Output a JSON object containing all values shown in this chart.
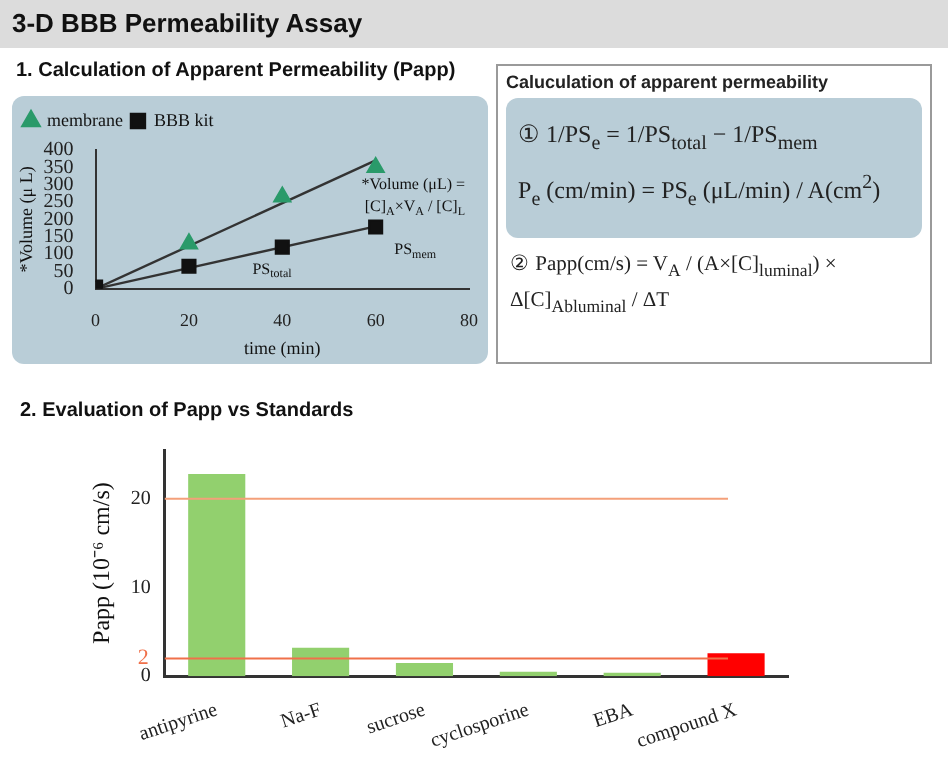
{
  "chart_data": [
    {
      "type": "scatter",
      "title": "3-D BBB Permeability Assay",
      "subtitle": "1. Calculation of Apparent Permeability (Papp)",
      "xlabel": "time (min)",
      "ylabel": "*Volume (μ L)",
      "xlim": [
        0,
        80
      ],
      "xticks": [
        0,
        20,
        40,
        60,
        80
      ],
      "ylim": [
        0,
        400
      ],
      "yticks": [
        0,
        50,
        100,
        150,
        200,
        250,
        300,
        350,
        400
      ],
      "grid": false,
      "legend": "top left",
      "series": [
        {
          "name": "membrane",
          "type": "scatter",
          "marker": "triangle",
          "color": "#2a9a6a",
          "x": [
            20,
            40,
            60
          ],
          "values": [
            130,
            265,
            350
          ]
        },
        {
          "name": "BBB kit",
          "type": "scatter",
          "marker": "square",
          "color": "#111111",
          "x": [
            0,
            20,
            40,
            60
          ],
          "values": [
            5,
            65,
            120,
            178
          ]
        },
        {
          "type": "line",
          "marker": "none",
          "color": "#333333",
          "x": [
            0,
            60
          ],
          "values": [
            0,
            370
          ]
        },
        {
          "type": "line",
          "marker": "none",
          "color": "#333333",
          "x": [
            0,
            60
          ],
          "values": [
            0,
            180
          ]
        }
      ],
      "annotations": [
        "*Volume (μL) = [C]$_{A}$×V$_{A}$ / [C]$_{L}$",
        "PS$_{total}$",
        "PS$_{mem}$"
      ]
    },
    {
      "type": "other",
      "title": "Caluculation of apparent permeability",
      "annotations": [
        "① 1/PS$_{e}$ = 1/PS$_{total}$ − 1/PS$_{mem}$",
        "P$_{e}$ (cm/min) = PS$_{e}$ (μL/min) / A(cm$^{2}$)",
        "② Papp(cm/s) = V$_{A}$ / (A×[C]$_{luminal}$) × Δ[C]$_{Abluminal}$ / ΔT"
      ]
    },
    {
      "type": "bar",
      "title": "2. Evaluation of Papp vs Standards",
      "ylabel": "Papp (10⁻⁶ cm/s)",
      "categories": [
        "antipyrine",
        "Na-F",
        "sucrose",
        "cyclosporine",
        "EBA",
        "compound X"
      ],
      "values": [
        22.8,
        3.2,
        1.5,
        0.5,
        0.4,
        2.6
      ],
      "colors": [
        "#92d06e",
        "#92d06e",
        "#92d06e",
        "#92d06e",
        "#92d06e",
        "#ff0000"
      ],
      "ylim": [
        0,
        25.5
      ],
      "yticks": [
        0,
        10,
        20
      ],
      "grid": false,
      "ref_lines": [
        {
          "axis": "y",
          "value": 20,
          "color": "#f4a07a"
        },
        {
          "axis": "y",
          "value": 2,
          "label": "2",
          "color": "#f0704a"
        }
      ]
    }
  ]
}
